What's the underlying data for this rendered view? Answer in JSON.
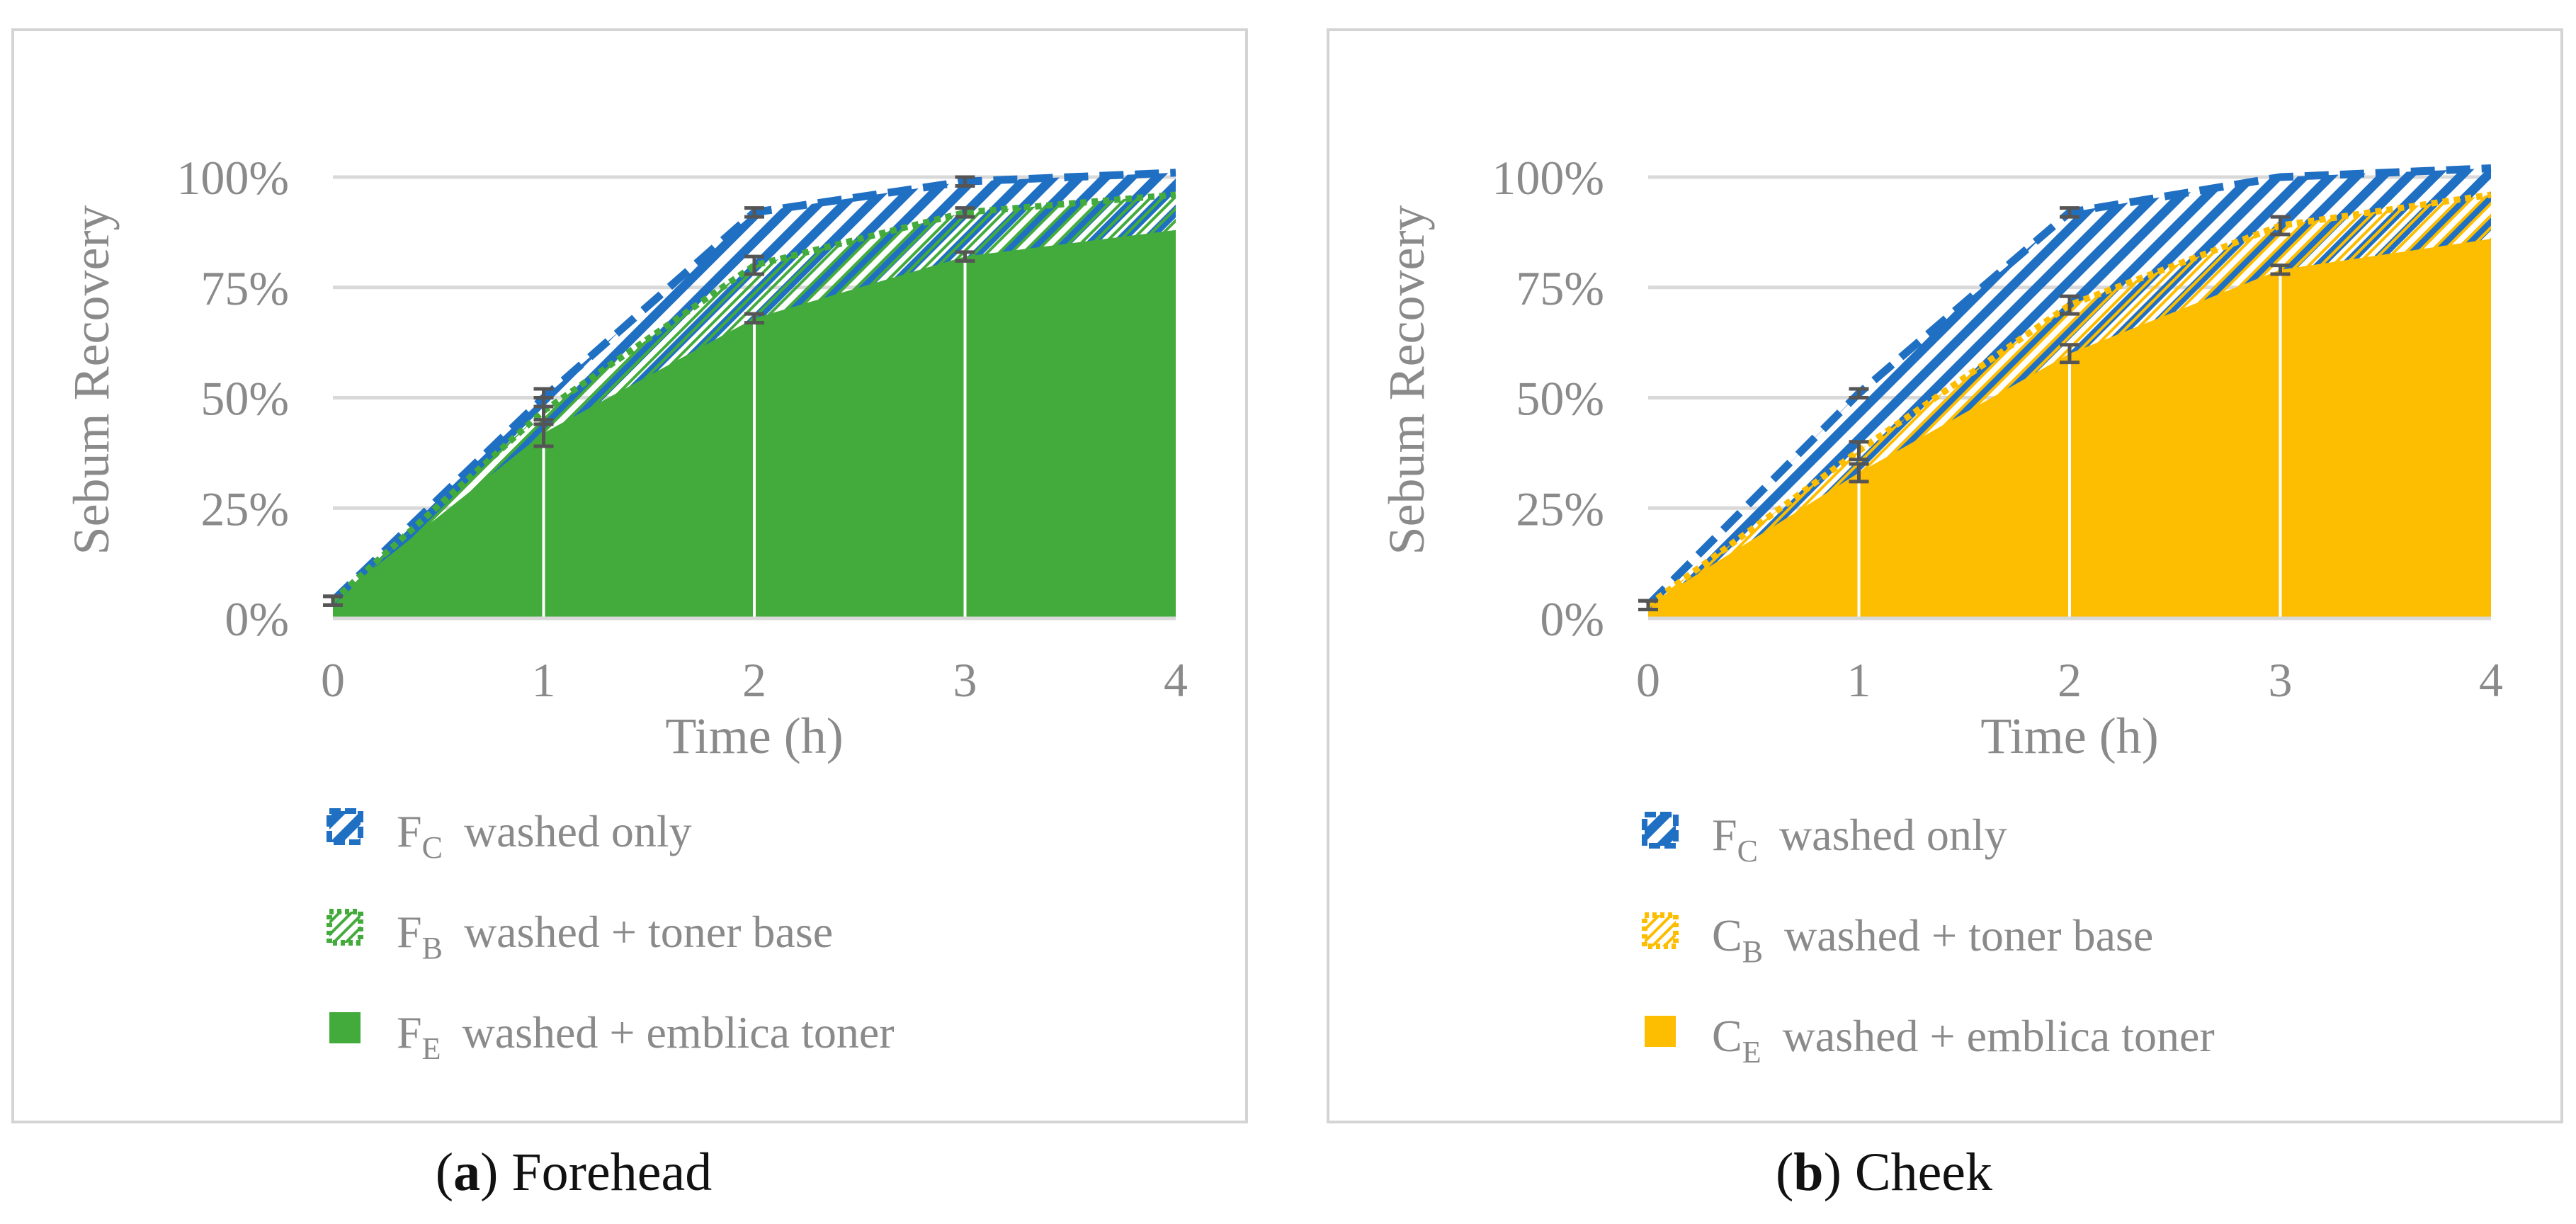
{
  "colors": {
    "blue": "#1f6fc3",
    "green": "#43ab3b",
    "yellow": "#fdbd00",
    "axis_text": "#8a8a8a",
    "grid": "#d9d9d9",
    "panel_border": "#d4d4d4",
    "error_bar": "#555555",
    "caption_text": "#111111"
  },
  "chart_data": [
    {
      "type": "area",
      "panel_label": "a",
      "caption": "Forehead",
      "xlabel": "Time (h)",
      "ylabel": "Sebum Recovery",
      "x": [
        0,
        1,
        2,
        3,
        4
      ],
      "xticks": [
        "0",
        "1",
        "2",
        "3",
        "4"
      ],
      "ylim": [
        0,
        1
      ],
      "yticks": [
        "0%",
        "25%",
        "50%",
        "75%",
        "100%"
      ],
      "grid": true,
      "legend_position": "bottom",
      "series": [
        {
          "name": "washed only",
          "symbol": "F",
          "subscript": "C",
          "style": "blue-hatch-dashed",
          "color": "#1f6fc3",
          "values": [
            0.04,
            0.5,
            0.92,
            0.99,
            1.01
          ],
          "errors": [
            0.01,
            0.02,
            0.01,
            0.01,
            0.0
          ]
        },
        {
          "name": "washed + toner base",
          "symbol": "F",
          "subscript": "B",
          "style": "green-hatch-dotted",
          "color": "#43ab3b",
          "values": [
            0.04,
            0.47,
            0.8,
            0.92,
            0.96
          ],
          "errors": [
            0.01,
            0.03,
            0.02,
            0.01,
            0.0
          ]
        },
        {
          "name": "washed + emblica toner",
          "symbol": "F",
          "subscript": "E",
          "style": "solid",
          "color": "#43ab3b",
          "values": [
            0.04,
            0.42,
            0.68,
            0.82,
            0.88
          ],
          "errors": [
            0.01,
            0.03,
            0.01,
            0.01,
            0.0
          ]
        }
      ]
    },
    {
      "type": "area",
      "panel_label": "b",
      "caption": "Cheek",
      "xlabel": "Time (h)",
      "ylabel": "Sebum Recovery",
      "x": [
        0,
        1,
        2,
        3,
        4
      ],
      "xticks": [
        "0",
        "1",
        "2",
        "3",
        "4"
      ],
      "ylim": [
        0,
        1
      ],
      "yticks": [
        "0%",
        "25%",
        "50%",
        "75%",
        "100%"
      ],
      "grid": true,
      "legend_position": "bottom",
      "series": [
        {
          "name": "washed only",
          "symbol": "F",
          "subscript": "C",
          "style": "blue-hatch-dashed",
          "color": "#1f6fc3",
          "values": [
            0.03,
            0.51,
            0.92,
            1.0,
            1.02
          ],
          "errors": [
            0.01,
            0.01,
            0.01,
            0.0,
            0.0
          ]
        },
        {
          "name": "washed + toner base",
          "symbol": "C",
          "subscript": "B",
          "style": "yellow-hatch-dotted",
          "color": "#fdbd00",
          "values": [
            0.03,
            0.38,
            0.71,
            0.89,
            0.96
          ],
          "errors": [
            0.01,
            0.02,
            0.02,
            0.02,
            0.0
          ]
        },
        {
          "name": "washed + emblica toner",
          "symbol": "C",
          "subscript": "E",
          "style": "solid",
          "color": "#fdbd00",
          "values": [
            0.03,
            0.33,
            0.6,
            0.79,
            0.86
          ],
          "errors": [
            0.01,
            0.02,
            0.02,
            0.01,
            0.0
          ]
        }
      ]
    }
  ]
}
